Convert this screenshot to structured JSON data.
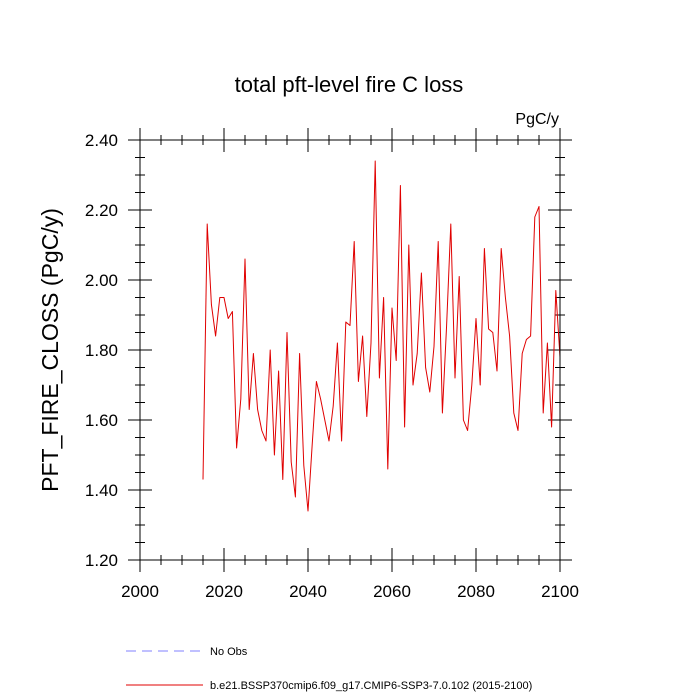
{
  "chart_data": {
    "type": "line",
    "title": "total pft-level fire C loss",
    "units": "PgC/y",
    "xlabel": "",
    "ylabel": "PFT_FIRE_CLOSS  (PgC/y)",
    "xlim": [
      2000,
      2100
    ],
    "ylim": [
      1.2,
      2.4
    ],
    "xticks": [
      2000,
      2020,
      2040,
      2060,
      2080,
      2100
    ],
    "xtick_labels": [
      "2000",
      "2020",
      "2040",
      "2060",
      "2080",
      "2100"
    ],
    "yticks": [
      1.2,
      1.4,
      1.6,
      1.8,
      2.0,
      2.2,
      2.4
    ],
    "ytick_labels": [
      "1.20",
      "1.40",
      "1.60",
      "1.80",
      "2.00",
      "2.20",
      "2.40"
    ],
    "series": [
      {
        "name": "b.e21.BSSP370cmip6.f09_g17.CMIP6-SSP3-7.0.102 (2015-2100)",
        "color": "#e00000",
        "style": "solid",
        "x": [
          2015,
          2016,
          2017,
          2018,
          2019,
          2020,
          2021,
          2022,
          2023,
          2024,
          2025,
          2026,
          2027,
          2028,
          2029,
          2030,
          2031,
          2032,
          2033,
          2034,
          2035,
          2036,
          2037,
          2038,
          2039,
          2040,
          2041,
          2042,
          2043,
          2044,
          2045,
          2046,
          2047,
          2048,
          2049,
          2050,
          2051,
          2052,
          2053,
          2054,
          2055,
          2056,
          2057,
          2058,
          2059,
          2060,
          2061,
          2062,
          2063,
          2064,
          2065,
          2066,
          2067,
          2068,
          2069,
          2070,
          2071,
          2072,
          2073,
          2074,
          2075,
          2076,
          2077,
          2078,
          2079,
          2080,
          2081,
          2082,
          2083,
          2084,
          2085,
          2086,
          2087,
          2088,
          2089,
          2090,
          2091,
          2092,
          2093,
          2094,
          2095,
          2096,
          2097,
          2098,
          2099,
          2100
        ],
        "y": [
          1.43,
          2.16,
          1.93,
          1.84,
          1.95,
          1.95,
          1.89,
          1.91,
          1.52,
          1.66,
          2.06,
          1.63,
          1.79,
          1.63,
          1.57,
          1.54,
          1.8,
          1.5,
          1.74,
          1.43,
          1.85,
          1.48,
          1.38,
          1.79,
          1.47,
          1.34,
          1.53,
          1.71,
          1.66,
          1.6,
          1.54,
          1.64,
          1.82,
          1.54,
          1.88,
          1.87,
          2.11,
          1.71,
          1.84,
          1.61,
          1.82,
          2.34,
          1.72,
          1.95,
          1.46,
          1.92,
          1.77,
          2.27,
          1.58,
          2.1,
          1.7,
          1.79,
          2.02,
          1.75,
          1.68,
          1.81,
          2.11,
          1.62,
          1.87,
          2.16,
          1.72,
          2.01,
          1.6,
          1.57,
          1.7,
          1.89,
          1.7,
          2.09,
          1.86,
          1.85,
          1.74,
          2.09,
          1.95,
          1.84,
          1.62,
          1.57,
          1.79,
          1.83,
          1.84,
          2.18,
          2.21,
          1.62,
          1.82,
          1.58,
          1.97,
          1.78
        ]
      },
      {
        "name": "No Obs",
        "color": "#8080ff",
        "style": "dashed",
        "x": [],
        "y": []
      }
    ],
    "legend_position": "bottom"
  }
}
